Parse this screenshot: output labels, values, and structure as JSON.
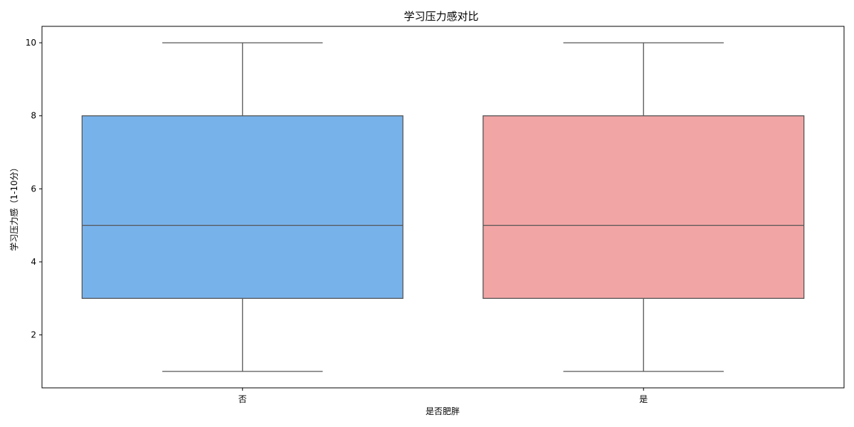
{
  "chart_data": {
    "type": "box",
    "title": "学习压力感对比",
    "xlabel": "是否肥胖",
    "ylabel": "学习压力感（1-10分）",
    "categories": [
      "否",
      "是"
    ],
    "boxes": [
      {
        "category": "否",
        "whisker_low": 1,
        "q1": 3,
        "median": 5,
        "q3": 8,
        "whisker_high": 10,
        "color": "#78b2eb"
      },
      {
        "category": "是",
        "whisker_low": 1,
        "q1": 3,
        "median": 5,
        "q3": 8,
        "whisker_high": 10,
        "color": "#f2a5a5"
      }
    ],
    "ylim": [
      0.55,
      10.45
    ],
    "yticks": [
      2,
      4,
      6,
      8,
      10
    ],
    "grid": false,
    "line_color": "#555555"
  }
}
